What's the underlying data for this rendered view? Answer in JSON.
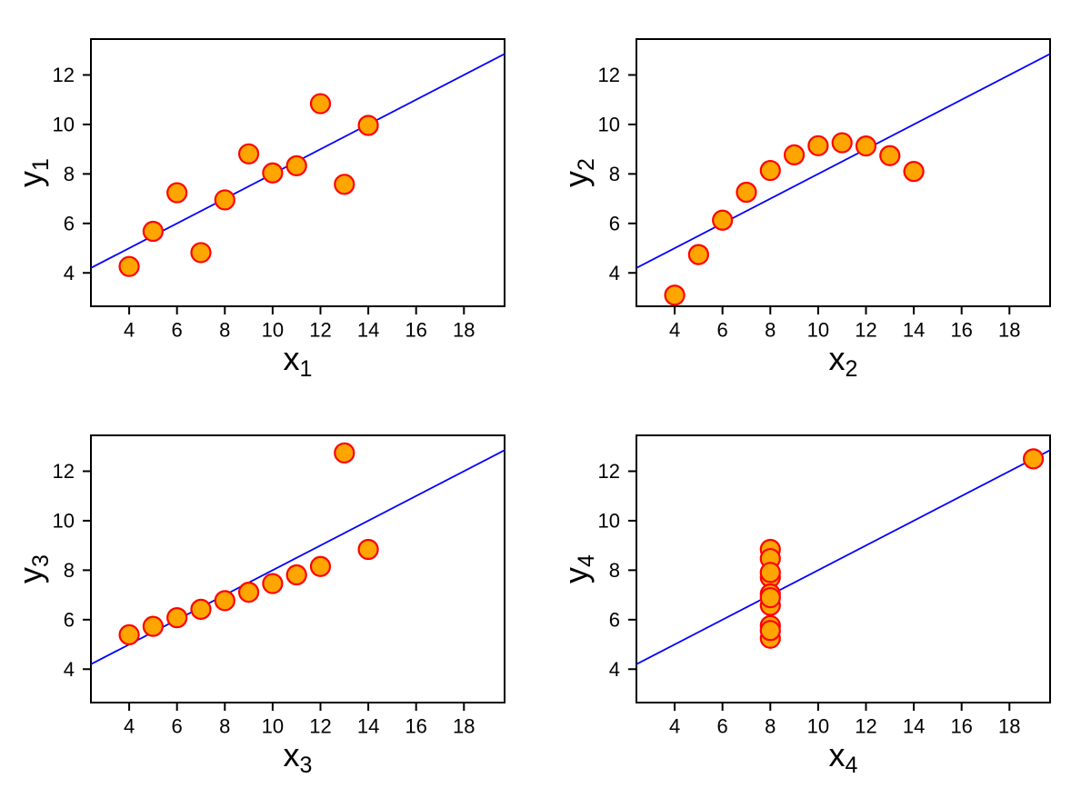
{
  "figure": {
    "background": "#FFFFFF",
    "description": "Anscombe quartet: four scatter plots with identical linear fits"
  },
  "style": {
    "point_fill": "#FFA500",
    "point_stroke": "#FF0000",
    "fit_line_color": "#0000FF",
    "axis_color": "#000000",
    "text_color": "#000000",
    "grid": "off",
    "legend": "none"
  },
  "chart_data": [
    {
      "id": "panel-1",
      "type": "scatter",
      "xlabel": {
        "base": "x",
        "sub": "1"
      },
      "ylabel": {
        "base": "y",
        "sub": "1"
      },
      "x": [
        10,
        8,
        13,
        9,
        11,
        14,
        6,
        4,
        12,
        7,
        5
      ],
      "y": [
        8.04,
        6.95,
        7.58,
        8.81,
        8.33,
        9.96,
        7.24,
        4.26,
        10.84,
        4.82,
        5.68
      ],
      "xticks": [
        4,
        6,
        8,
        10,
        12,
        14,
        16,
        18
      ],
      "yticks": [
        4,
        6,
        8,
        10,
        12
      ],
      "xlim": [
        2.4,
        19.7
      ],
      "ylim": [
        2.65,
        13.45
      ],
      "fit_line": {
        "intercept": 3.0,
        "slope": 0.5
      }
    },
    {
      "id": "panel-2",
      "type": "scatter",
      "xlabel": {
        "base": "x",
        "sub": "2"
      },
      "ylabel": {
        "base": "y",
        "sub": "2"
      },
      "x": [
        10,
        8,
        13,
        9,
        11,
        14,
        6,
        4,
        12,
        7,
        5
      ],
      "y": [
        9.14,
        8.14,
        8.74,
        8.77,
        9.26,
        8.1,
        6.13,
        3.1,
        9.13,
        7.26,
        4.74
      ],
      "xticks": [
        4,
        6,
        8,
        10,
        12,
        14,
        16,
        18
      ],
      "yticks": [
        4,
        6,
        8,
        10,
        12
      ],
      "xlim": [
        2.4,
        19.7
      ],
      "ylim": [
        2.65,
        13.45
      ],
      "fit_line": {
        "intercept": 3.0,
        "slope": 0.5
      }
    },
    {
      "id": "panel-3",
      "type": "scatter",
      "xlabel": {
        "base": "x",
        "sub": "3"
      },
      "ylabel": {
        "base": "y",
        "sub": "3"
      },
      "x": [
        10,
        8,
        13,
        9,
        11,
        14,
        6,
        4,
        12,
        7,
        5
      ],
      "y": [
        7.46,
        6.77,
        12.74,
        7.11,
        7.81,
        8.84,
        6.08,
        5.39,
        8.15,
        6.42,
        5.73
      ],
      "xticks": [
        4,
        6,
        8,
        10,
        12,
        14,
        16,
        18
      ],
      "yticks": [
        4,
        6,
        8,
        10,
        12
      ],
      "xlim": [
        2.4,
        19.7
      ],
      "ylim": [
        2.65,
        13.45
      ],
      "fit_line": {
        "intercept": 3.0,
        "slope": 0.5
      }
    },
    {
      "id": "panel-4",
      "type": "scatter",
      "xlabel": {
        "base": "x",
        "sub": "4"
      },
      "ylabel": {
        "base": "y",
        "sub": "4"
      },
      "x": [
        8,
        8,
        8,
        8,
        8,
        8,
        8,
        19,
        8,
        8,
        8
      ],
      "y": [
        6.58,
        5.76,
        7.71,
        8.84,
        8.47,
        7.04,
        5.25,
        12.5,
        5.56,
        7.91,
        6.89
      ],
      "xticks": [
        4,
        6,
        8,
        10,
        12,
        14,
        16,
        18
      ],
      "yticks": [
        4,
        6,
        8,
        10,
        12
      ],
      "xlim": [
        2.4,
        19.7
      ],
      "ylim": [
        2.65,
        13.45
      ],
      "fit_line": {
        "intercept": 3.0,
        "slope": 0.5
      }
    }
  ]
}
